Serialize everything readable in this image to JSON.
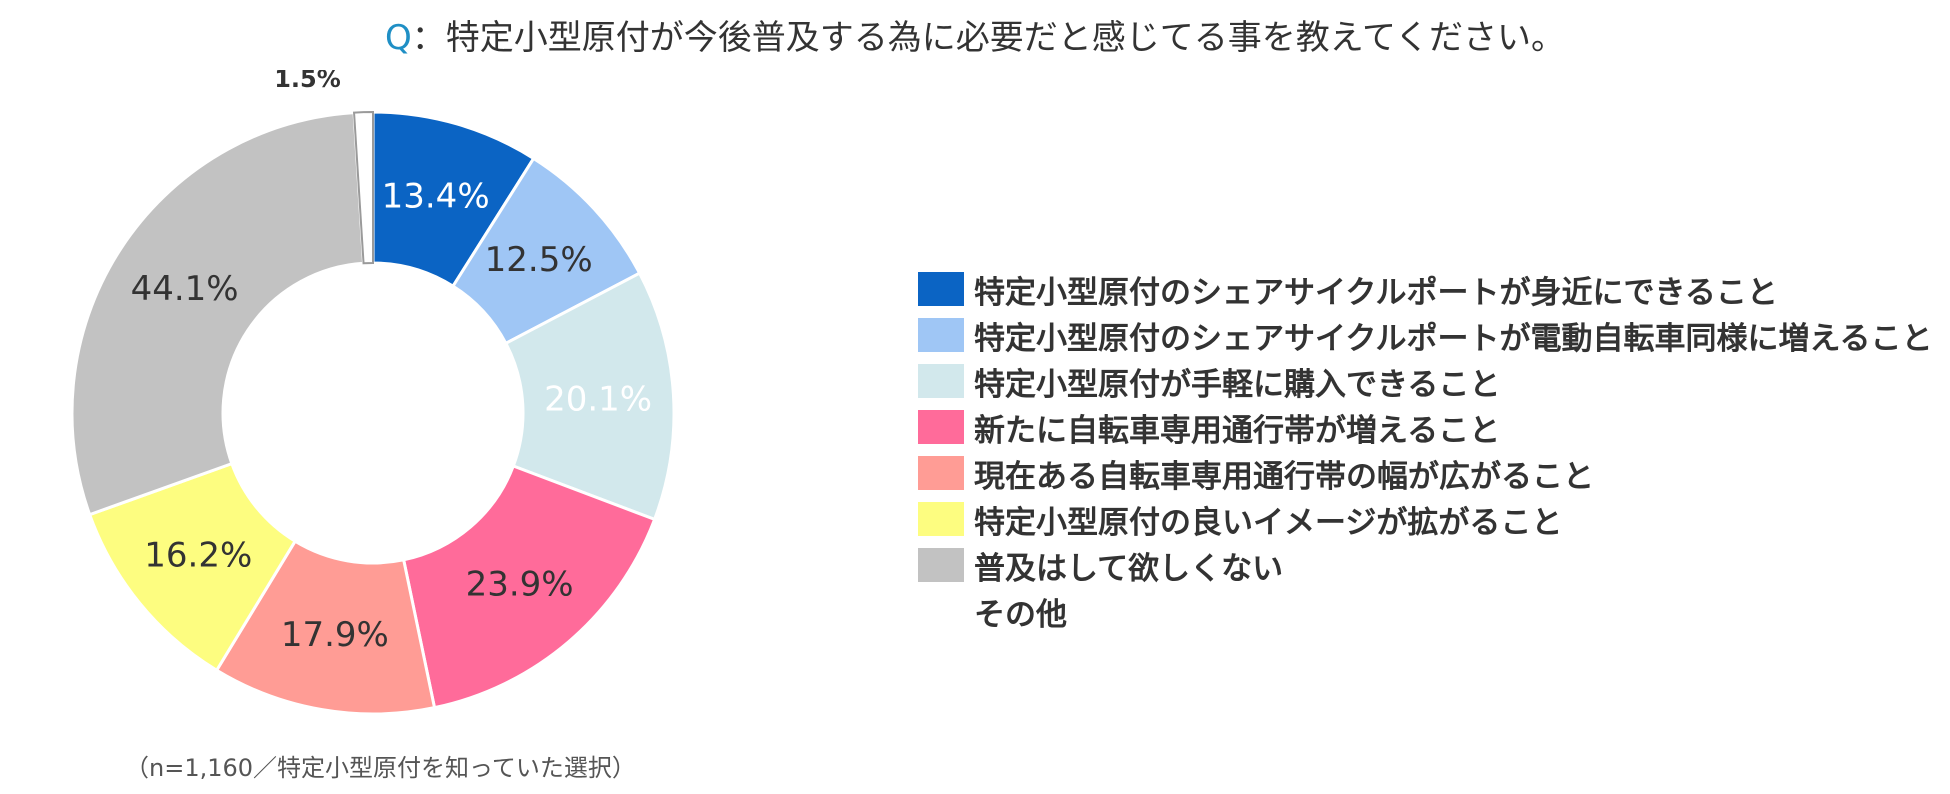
{
  "title": {
    "prefix": "Q",
    "text": "：特定小型原付が今後普及する為に必要だと感じてる事を教えてください。"
  },
  "note": "（n=1,160／特定小型原付を知っていた選択）",
  "chart_data": {
    "type": "pie",
    "donut": true,
    "title": "Q：特定小型原付が今後普及する為に必要だと感じてる事を教えてください。",
    "legend_position": "right",
    "unit": "%",
    "slices": [
      {
        "label": "特定小型原付のシェアサイクルポートが身近にできること",
        "value": 13.4,
        "display": "13.4%",
        "color": "#0b64c4",
        "text_color": "#ffffff"
      },
      {
        "label": "特定小型原付のシェアサイクルポートが電動自転車同様に増えること",
        "value": 12.5,
        "display": "12.5%",
        "color": "#9fc6f5",
        "text_color": "#333333"
      },
      {
        "label": "特定小型原付が手軽に購入できること",
        "value": 20.1,
        "display": "20.1%",
        "color": "#d2e8ec",
        "text_color": "#ffffff"
      },
      {
        "label": "新たに自転車専用通行帯が増えること",
        "value": 23.9,
        "display": "23.9%",
        "color": "#ff6b9a",
        "text_color": "#333333"
      },
      {
        "label": "現在ある自転車専用通行帯の幅が広がること",
        "value": 17.9,
        "display": "17.9%",
        "color": "#ff9c95",
        "text_color": "#333333"
      },
      {
        "label": "特定小型原付の良いイメージが拡がること",
        "value": 16.2,
        "display": "16.2%",
        "color": "#fdfd80",
        "text_color": "#333333"
      },
      {
        "label": "普及はして欲しくない",
        "value": 44.1,
        "display": "44.1%",
        "color": "#c2c2c2",
        "text_color": "#333333"
      },
      {
        "label": "その他",
        "value": 1.5,
        "display": "1.5%",
        "color": "#ffffff",
        "text_color": "#333333",
        "outside_label": true
      }
    ]
  }
}
